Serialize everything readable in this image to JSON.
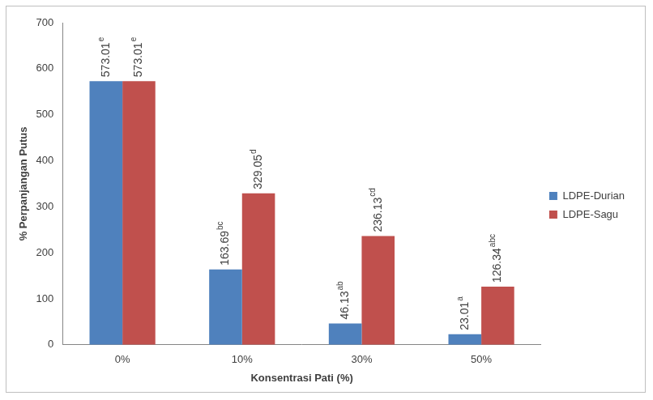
{
  "chart_data": {
    "type": "bar",
    "x_label": "Konsentrasi Pati (%)",
    "y_label": "% Perpanjangan Putus",
    "categories": [
      "0%",
      "10%",
      "30%",
      "50%"
    ],
    "series": [
      {
        "name": "LDPE-Durian",
        "color": "#4f81bd",
        "values": [
          573.01,
          163.69,
          46.13,
          23.01
        ],
        "value_labels": [
          "573.01e",
          "163.69bc",
          "46.13ab",
          "23.01a"
        ]
      },
      {
        "name": "LDPE-Sagu",
        "color": "#c0504d",
        "values": [
          573.01,
          329.05,
          236.13,
          126.34
        ],
        "value_labels": [
          "573.01e",
          "329.05d",
          "236.13cd",
          "126.34abc"
        ]
      }
    ],
    "ylim": [
      0,
      700
    ],
    "yticks": [
      0,
      100,
      200,
      300,
      400,
      500,
      600,
      700
    ],
    "grid": false,
    "legend": "right",
    "data_labels": true
  }
}
